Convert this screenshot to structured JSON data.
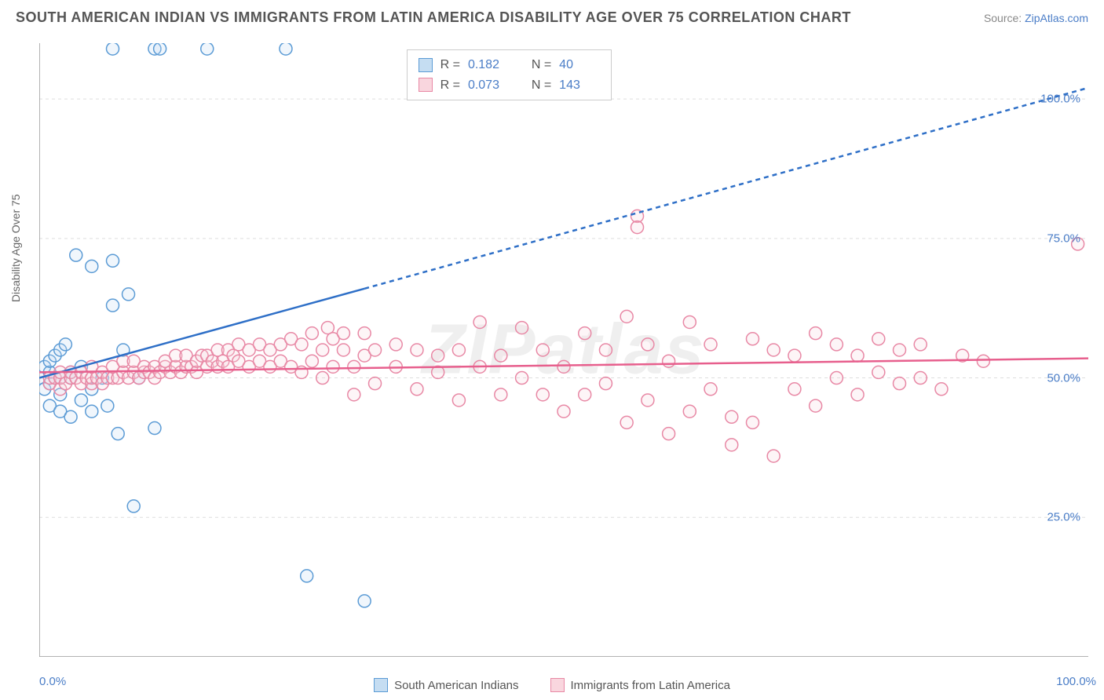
{
  "title": "SOUTH AMERICAN INDIAN VS IMMIGRANTS FROM LATIN AMERICA DISABILITY AGE OVER 75 CORRELATION CHART",
  "source_prefix": "Source: ",
  "source_link": "ZipAtlas.com",
  "watermark": "ZIPatlas",
  "chart": {
    "type": "scatter",
    "y_label": "Disability Age Over 75",
    "xlim": [
      0,
      100
    ],
    "ylim": [
      0,
      110
    ],
    "x_ticks": [
      0,
      100
    ],
    "x_tick_labels": [
      "0.0%",
      "100.0%"
    ],
    "y_ticks": [
      25,
      50,
      75,
      100
    ],
    "y_tick_labels": [
      "25.0%",
      "50.0%",
      "75.0%",
      "100.0%"
    ],
    "x_minor_ticks": [
      17,
      34,
      50,
      67,
      84
    ],
    "background_color": "#ffffff",
    "grid_color": "#dddddd",
    "axis_color": "#999999",
    "tick_label_color": "#4a7dc7",
    "marker_radius": 8,
    "marker_stroke_width": 1.5,
    "marker_fill_opacity": 0.25,
    "series": [
      {
        "name": "South American Indians",
        "color_stroke": "#5b9bd5",
        "color_fill": "#c5ddf2",
        "r": 0.182,
        "n": 40,
        "trend_line": {
          "x1": 0,
          "y1": 50,
          "x2": 31,
          "y2": 66,
          "solid": true
        },
        "trend_line_ext": {
          "x1": 31,
          "y1": 66,
          "x2": 100,
          "y2": 102,
          "solid": false
        },
        "line_color": "#2e6fc7",
        "line_width": 2.5,
        "data": [
          [
            0,
            50
          ],
          [
            0.5,
            48
          ],
          [
            0.5,
            52
          ],
          [
            1,
            45
          ],
          [
            1,
            49
          ],
          [
            1,
            51
          ],
          [
            1,
            53
          ],
          [
            1.5,
            50
          ],
          [
            1.5,
            54
          ],
          [
            2,
            44
          ],
          [
            2,
            47
          ],
          [
            2,
            50
          ],
          [
            2,
            55
          ],
          [
            2.5,
            56
          ],
          [
            3,
            43
          ],
          [
            3,
            50
          ],
          [
            3,
            51
          ],
          [
            3.5,
            72
          ],
          [
            4,
            46
          ],
          [
            4,
            52
          ],
          [
            5,
            44
          ],
          [
            5,
            48
          ],
          [
            5,
            70
          ],
          [
            6,
            50
          ],
          [
            6.5,
            45
          ],
          [
            7,
            109
          ],
          [
            7,
            63
          ],
          [
            7,
            71
          ],
          [
            7.5,
            40
          ],
          [
            8,
            55
          ],
          [
            8.5,
            65
          ],
          [
            9,
            27
          ],
          [
            9.5,
            50
          ],
          [
            11,
            41
          ],
          [
            11,
            109
          ],
          [
            11.5,
            109
          ],
          [
            16,
            109
          ],
          [
            23.5,
            109
          ],
          [
            25.5,
            14.5
          ],
          [
            31,
            10
          ]
        ]
      },
      {
        "name": "Immigrants from Latin America",
        "color_stroke": "#e888a5",
        "color_fill": "#f9d6de",
        "r": 0.073,
        "n": 143,
        "trend_line": {
          "x1": 0,
          "y1": 51,
          "x2": 100,
          "y2": 53.5,
          "solid": true
        },
        "line_color": "#e75f8d",
        "line_width": 2.5,
        "data": [
          [
            1,
            49
          ],
          [
            1,
            50
          ],
          [
            1.5,
            50
          ],
          [
            2,
            48
          ],
          [
            2,
            50
          ],
          [
            2,
            51
          ],
          [
            2.5,
            49
          ],
          [
            3,
            50
          ],
          [
            3,
            51
          ],
          [
            3.5,
            50
          ],
          [
            4,
            49
          ],
          [
            4,
            51
          ],
          [
            4.5,
            50
          ],
          [
            5,
            49
          ],
          [
            5,
            50
          ],
          [
            5,
            52
          ],
          [
            5.5,
            50
          ],
          [
            6,
            49
          ],
          [
            6,
            51
          ],
          [
            6.5,
            50
          ],
          [
            7,
            50
          ],
          [
            7,
            52
          ],
          [
            7.5,
            50
          ],
          [
            8,
            51
          ],
          [
            8,
            53
          ],
          [
            8.5,
            50
          ],
          [
            9,
            51
          ],
          [
            9,
            53
          ],
          [
            9.5,
            50
          ],
          [
            10,
            51
          ],
          [
            10,
            52
          ],
          [
            10.5,
            51
          ],
          [
            11,
            50
          ],
          [
            11,
            52
          ],
          [
            11.5,
            51
          ],
          [
            12,
            52
          ],
          [
            12,
            53
          ],
          [
            12.5,
            51
          ],
          [
            13,
            52
          ],
          [
            13,
            54
          ],
          [
            13.5,
            51
          ],
          [
            14,
            52
          ],
          [
            14,
            54
          ],
          [
            14.5,
            52
          ],
          [
            15,
            51
          ],
          [
            15,
            53
          ],
          [
            15.5,
            54
          ],
          [
            16,
            52
          ],
          [
            16,
            54
          ],
          [
            16.5,
            53
          ],
          [
            17,
            52
          ],
          [
            17,
            55
          ],
          [
            17.5,
            53
          ],
          [
            18,
            52
          ],
          [
            18,
            55
          ],
          [
            18.5,
            54
          ],
          [
            19,
            53
          ],
          [
            19,
            56
          ],
          [
            20,
            52
          ],
          [
            20,
            55
          ],
          [
            21,
            53
          ],
          [
            21,
            56
          ],
          [
            22,
            52
          ],
          [
            22,
            55
          ],
          [
            23,
            53
          ],
          [
            23,
            56
          ],
          [
            24,
            52
          ],
          [
            24,
            57
          ],
          [
            25,
            51
          ],
          [
            25,
            56
          ],
          [
            26,
            53
          ],
          [
            26,
            58
          ],
          [
            27,
            50
          ],
          [
            27,
            55
          ],
          [
            27.5,
            59
          ],
          [
            28,
            52
          ],
          [
            28,
            57
          ],
          [
            29,
            55
          ],
          [
            29,
            58
          ],
          [
            30,
            47
          ],
          [
            30,
            52
          ],
          [
            31,
            54
          ],
          [
            31,
            58
          ],
          [
            32,
            49
          ],
          [
            32,
            55
          ],
          [
            34,
            52
          ],
          [
            34,
            56
          ],
          [
            36,
            48
          ],
          [
            36,
            55
          ],
          [
            38,
            51
          ],
          [
            38,
            54
          ],
          [
            40,
            46
          ],
          [
            40,
            55
          ],
          [
            42,
            52
          ],
          [
            42,
            60
          ],
          [
            44,
            47
          ],
          [
            44,
            54
          ],
          [
            46,
            50
          ],
          [
            46,
            59
          ],
          [
            48,
            47
          ],
          [
            48,
            55
          ],
          [
            50,
            44
          ],
          [
            50,
            52
          ],
          [
            52,
            47
          ],
          [
            52,
            58
          ],
          [
            54,
            49
          ],
          [
            54,
            55
          ],
          [
            56,
            42
          ],
          [
            56,
            61
          ],
          [
            57,
            79
          ],
          [
            57,
            77
          ],
          [
            58,
            46
          ],
          [
            58,
            56
          ],
          [
            60,
            40
          ],
          [
            60,
            53
          ],
          [
            62,
            44
          ],
          [
            62,
            60
          ],
          [
            64,
            48
          ],
          [
            64,
            56
          ],
          [
            66,
            38
          ],
          [
            66,
            43
          ],
          [
            68,
            42
          ],
          [
            68,
            57
          ],
          [
            70,
            36
          ],
          [
            70,
            55
          ],
          [
            72,
            48
          ],
          [
            72,
            54
          ],
          [
            74,
            45
          ],
          [
            74,
            58
          ],
          [
            76,
            50
          ],
          [
            76,
            56
          ],
          [
            78,
            47
          ],
          [
            78,
            54
          ],
          [
            80,
            51
          ],
          [
            80,
            57
          ],
          [
            82,
            49
          ],
          [
            82,
            55
          ],
          [
            84,
            50
          ],
          [
            84,
            56
          ],
          [
            86,
            48
          ],
          [
            88,
            54
          ],
          [
            90,
            53
          ],
          [
            99,
            74
          ]
        ]
      }
    ]
  },
  "stats_labels": {
    "r": "R =",
    "n": "N ="
  },
  "bottom_legend": [
    {
      "label": "South American Indians",
      "fill": "#c5ddf2",
      "stroke": "#5b9bd5"
    },
    {
      "label": "Immigrants from Latin America",
      "fill": "#f9d6de",
      "stroke": "#e888a5"
    }
  ]
}
